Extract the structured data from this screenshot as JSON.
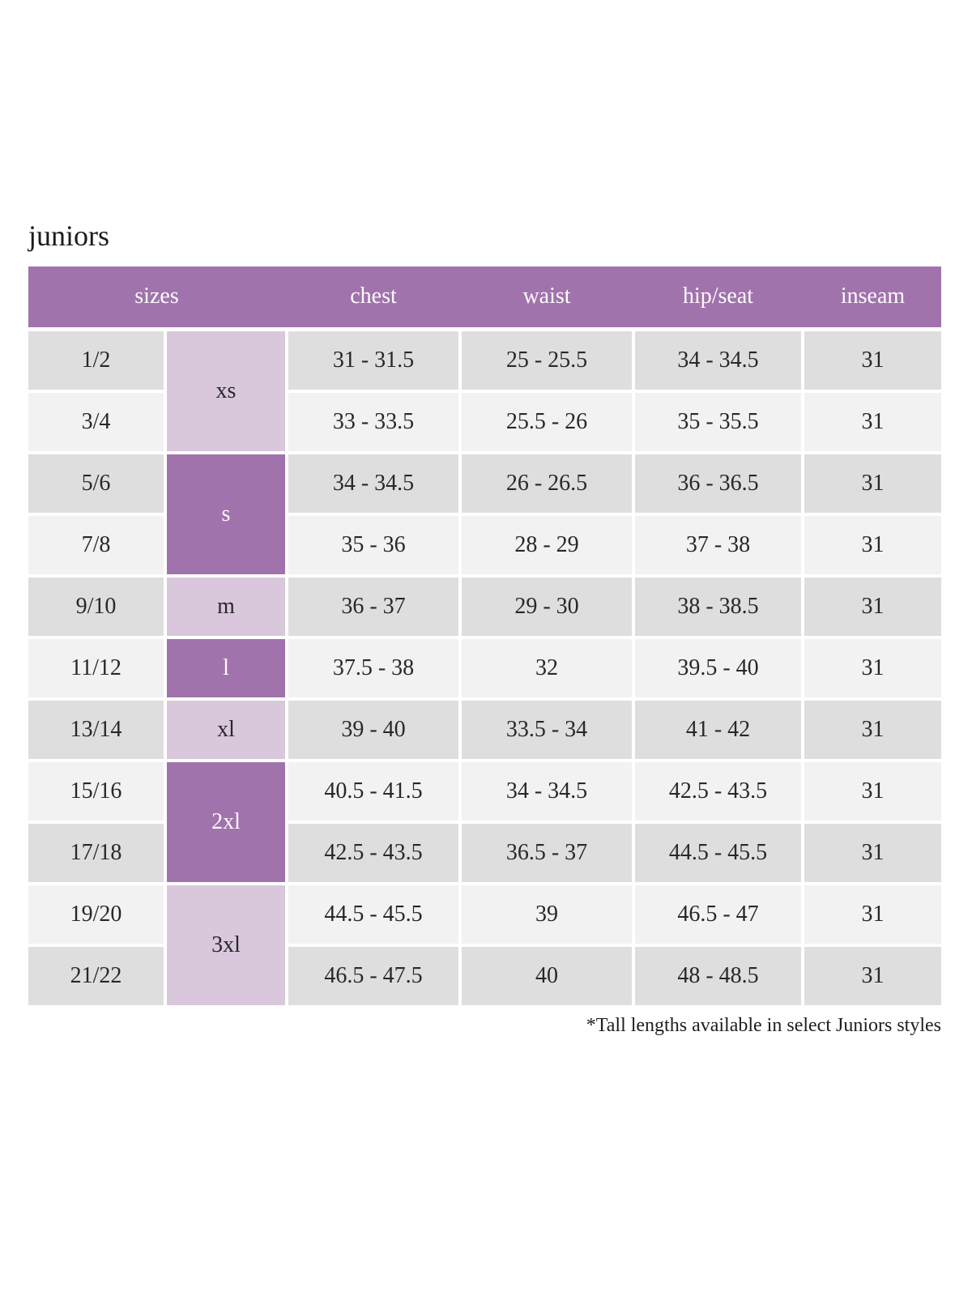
{
  "page": {
    "title": "juniors",
    "footnote": "*Tall lengths available in select Juniors styles"
  },
  "colors": {
    "header_bg": "#a173ad",
    "letter_dark_bg": "#a173ad",
    "letter_light_bg": "#d9c7dc",
    "row_odd_bg": "#dedede",
    "row_even_bg": "#f2f2f2",
    "header_text": "#fdfbfd",
    "body_text": "#282828"
  },
  "chart_data": {
    "type": "table",
    "title": "juniors",
    "headers": [
      "sizes",
      "chest",
      "waist",
      "hip/seat",
      "inseam"
    ],
    "size_groups": [
      {
        "label": "xs",
        "rows_spanned": 2,
        "shade": "light"
      },
      {
        "label": "s",
        "rows_spanned": 2,
        "shade": "dark"
      },
      {
        "label": "m",
        "rows_spanned": 1,
        "shade": "light"
      },
      {
        "label": "l",
        "rows_spanned": 1,
        "shade": "dark"
      },
      {
        "label": "xl",
        "rows_spanned": 1,
        "shade": "light"
      },
      {
        "label": "2xl",
        "rows_spanned": 2,
        "shade": "dark"
      },
      {
        "label": "3xl",
        "rows_spanned": 2,
        "shade": "light"
      }
    ],
    "rows": [
      {
        "size": "1/2",
        "chest": "31 - 31.5",
        "waist": "25 - 25.5",
        "hip": "34 - 34.5",
        "inseam": "31"
      },
      {
        "size": "3/4",
        "chest": "33 - 33.5",
        "waist": "25.5 - 26",
        "hip": "35 - 35.5",
        "inseam": "31"
      },
      {
        "size": "5/6",
        "chest": "34 - 34.5",
        "waist": "26 - 26.5",
        "hip": "36 - 36.5",
        "inseam": "31"
      },
      {
        "size": "7/8",
        "chest": "35 - 36",
        "waist": "28 - 29",
        "hip": "37 - 38",
        "inseam": "31"
      },
      {
        "size": "9/10",
        "chest": "36 - 37",
        "waist": "29 - 30",
        "hip": "38 - 38.5",
        "inseam": "31"
      },
      {
        "size": "11/12",
        "chest": "37.5 - 38",
        "waist": "32",
        "hip": "39.5 - 40",
        "inseam": "31"
      },
      {
        "size": "13/14",
        "chest": "39 - 40",
        "waist": "33.5 - 34",
        "hip": "41 - 42",
        "inseam": "31"
      },
      {
        "size": "15/16",
        "chest": "40.5 - 41.5",
        "waist": "34 - 34.5",
        "hip": "42.5 - 43.5",
        "inseam": "31"
      },
      {
        "size": "17/18",
        "chest": "42.5 - 43.5",
        "waist": "36.5 - 37",
        "hip": "44.5 - 45.5",
        "inseam": "31"
      },
      {
        "size": "19/20",
        "chest": "44.5 - 45.5",
        "waist": "39",
        "hip": "46.5 - 47",
        "inseam": "31"
      },
      {
        "size": "21/22",
        "chest": "46.5 - 47.5",
        "waist": "40",
        "hip": "48 - 48.5",
        "inseam": "31"
      }
    ]
  }
}
